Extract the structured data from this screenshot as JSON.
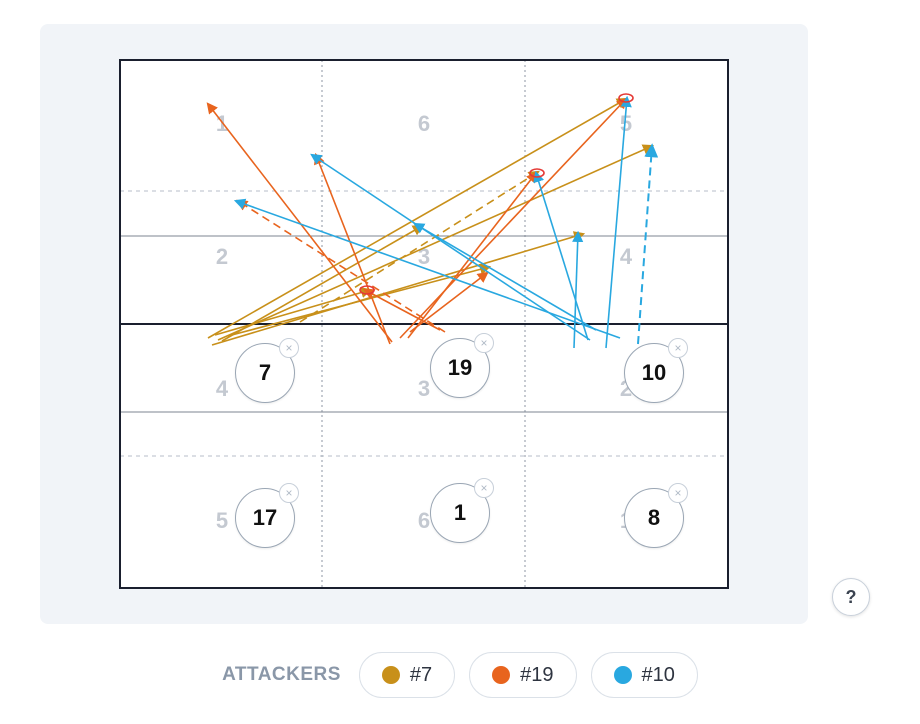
{
  "court": {
    "zone_numbers_upper": [
      "1",
      "6",
      "5",
      "2",
      "3",
      "4"
    ],
    "zone_numbers_lower": [
      "4",
      "3",
      "2",
      "5",
      "6",
      "1"
    ]
  },
  "players": {
    "p7": "7",
    "p19": "19",
    "p10": "10",
    "p17": "17",
    "p1": "1",
    "p8": "8"
  },
  "remove_glyph": "×",
  "help_label": "?",
  "legend": {
    "label": "ATTACKERS",
    "items": [
      {
        "label": "#7",
        "color": "#c8901a"
      },
      {
        "label": "#19",
        "color": "#e8641e"
      },
      {
        "label": "#10",
        "color": "#29a8e0"
      }
    ]
  },
  "colors": {
    "panel_bg": "#f1f4f8",
    "court_line": "#1a1f2e",
    "attacker_7": "#c8901a",
    "attacker_19": "#e8641e",
    "attacker_10": "#29a8e0",
    "landing_marker": "#e53935"
  }
}
